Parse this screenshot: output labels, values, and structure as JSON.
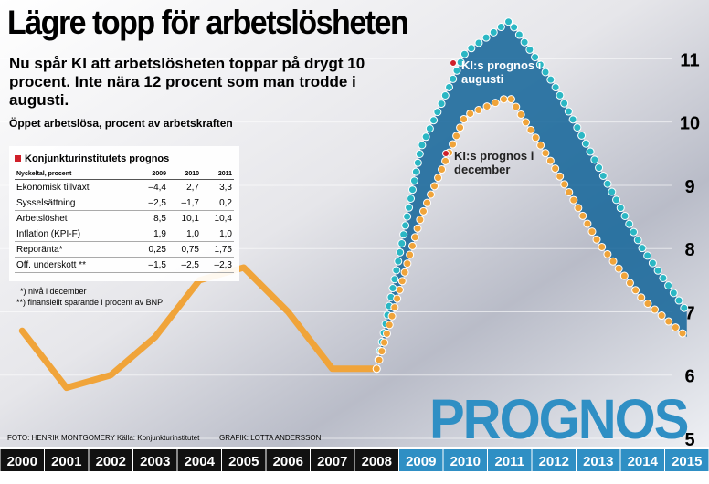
{
  "chart_data": {
    "type": "line",
    "title": "Lägre topp för arbetslösheten",
    "subtitle": "Nu spår KI att arbetslösheten toppar på drygt 10 procent. Inte nära 12 procent som man trodde i augusti.",
    "y_label": "Öppet arbetslösa, procent av arbetskraften",
    "categories": [
      "2000",
      "2001",
      "2002",
      "2003",
      "2004",
      "2005",
      "2006",
      "2007",
      "2008",
      "2009",
      "2010",
      "2011",
      "2012",
      "2013",
      "2014",
      "2015"
    ],
    "series": [
      {
        "color": "#f0a43a",
        "style": "solid",
        "values": [
          6.7,
          5.8,
          6.0,
          6.6,
          7.5,
          7.7,
          7.0,
          6.1,
          6.1,
          null,
          null,
          null,
          null,
          null,
          null,
          null
        ]
      },
      {
        "name": "KI:s prognos i augusti",
        "color": "#2bb7c4",
        "style": "dotted",
        "values": [
          null,
          null,
          null,
          null,
          null,
          null,
          null,
          null,
          6.1,
          9.6,
          11.1,
          11.6,
          10.6,
          9.3,
          8.0,
          7.0
        ]
      },
      {
        "name": "KI:s prognos i december",
        "color": "#f0a43a",
        "style": "dotted",
        "values": [
          null,
          null,
          null,
          null,
          null,
          null,
          null,
          null,
          6.1,
          8.5,
          10.1,
          10.4,
          9.3,
          8.1,
          7.2,
          6.6
        ]
      }
    ],
    "band_color": "#1d6a9c",
    "ylim": [
      5,
      11.8
    ],
    "yticks": [
      5,
      6,
      7,
      8,
      9,
      10,
      11
    ],
    "grid": true,
    "forecast_label": "PROGNOS",
    "table": {
      "title": "Konjunkturinstitutets prognos",
      "header": [
        "Nyckeltal, procent",
        "2009",
        "2010",
        "2011"
      ],
      "rows": [
        [
          "Ekonomisk tillväxt",
          "–4,4",
          "2,7",
          "3,3"
        ],
        [
          "Sysselsättning",
          "–2,5",
          "–1,7",
          "0,2"
        ],
        [
          "Arbetslöshet",
          "8,5",
          "10,1",
          "10,4"
        ],
        [
          "Inflation (KPI-F)",
          "1,9",
          "1,0",
          "1,0"
        ],
        [
          "Reporänta*",
          "0,25",
          "0,75",
          "1,75"
        ],
        [
          "Off. underskott **",
          "–1,5",
          "–2,5",
          "–2,3"
        ]
      ],
      "notes": [
        "*) nivå i december",
        "**) finansiellt sparande i procent av BNP"
      ]
    },
    "credits": [
      "FOTO: HENRIK MONTGOMERY  Källa: Konjunkturinstitutet",
      "GRAFIK: LOTTA ANDERSSON"
    ]
  }
}
